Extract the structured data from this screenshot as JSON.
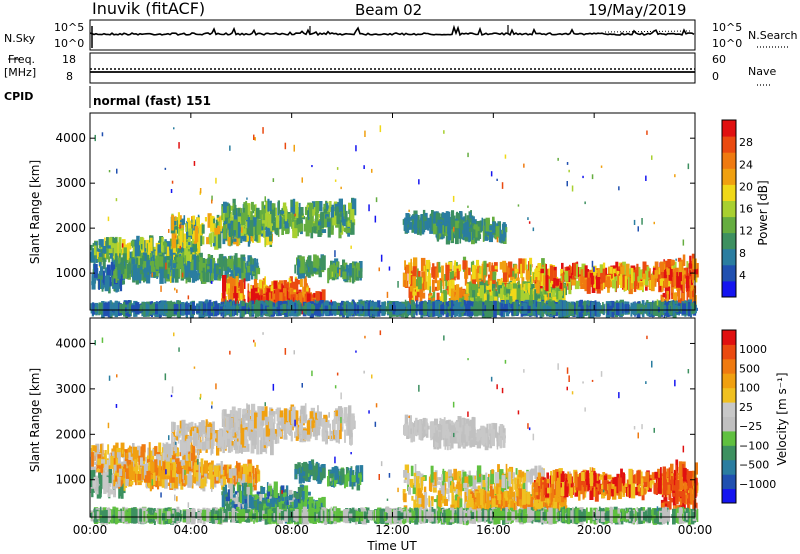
{
  "header": {
    "station": "Inuvik (fitACF)",
    "beam": "Beam 02",
    "date": "19/May/2019"
  },
  "panels": {
    "nsky_label": "N.Sky",
    "nsky_ticks": [
      "10^5",
      "10^0"
    ],
    "nsearch_label": "N.Search",
    "freq_label_1": "Freq.",
    "freq_label_2": "[MHz]",
    "freq_ticks": [
      "18",
      "8"
    ],
    "nave_label": "Nave",
    "nave_ticks": [
      "60",
      "0"
    ],
    "cpid_label": "CPID",
    "cpid_value": "normal (fast) 151"
  },
  "colors": {
    "power_scale": [
      "#1515f0",
      "#2050b0",
      "#2a7da0",
      "#3d9060",
      "#65ad40",
      "#a8d030",
      "#f0d818",
      "#f0a010",
      "#ef7a10",
      "#ea4a10",
      "#e01010"
    ],
    "velocity_scale": [
      "#e01010",
      "#ea4a10",
      "#ef7a10",
      "#f0a010",
      "#f0c020",
      "#c8c8c8",
      "#c0c0c0",
      "#60c040",
      "#3d9060",
      "#2a7da0",
      "#2050b0",
      "#1515f0"
    ],
    "ground_scatter": "#c8c8c8"
  },
  "chart_data": [
    {
      "type": "heatmap",
      "name": "power",
      "ylabel": "Slant Range [km]",
      "y_ticks": [
        1000,
        2000,
        3000,
        4000
      ],
      "ylim": [
        180,
        4560
      ],
      "x_ticks": [
        "00:00",
        "04:00",
        "08:00",
        "12:00",
        "16:00",
        "20:00",
        "00:00"
      ],
      "xlim_hours": [
        0,
        24
      ],
      "colorbar": {
        "label": "Power [dB]",
        "ticks": [
          "4",
          "8",
          "12",
          "16",
          "20",
          "24",
          "28"
        ],
        "range": [
          0,
          30
        ]
      }
    },
    {
      "type": "heatmap",
      "name": "velocity",
      "ylabel": "Slant Range [km]",
      "y_ticks": [
        1000,
        2000,
        3000,
        4000
      ],
      "ylim": [
        180,
        4560
      ],
      "x_ticks": [
        "00:00",
        "04:00",
        "08:00",
        "12:00",
        "16:00",
        "20:00",
        "00:00"
      ],
      "xlim_hours": [
        0,
        24
      ],
      "xlabel": "Time UT",
      "colorbar": {
        "label": "Velocity [m s⁻¹]",
        "ticks": [
          "1000",
          "500",
          "100",
          "25",
          "−25",
          "−100",
          "−500",
          "−1000"
        ]
      }
    }
  ]
}
